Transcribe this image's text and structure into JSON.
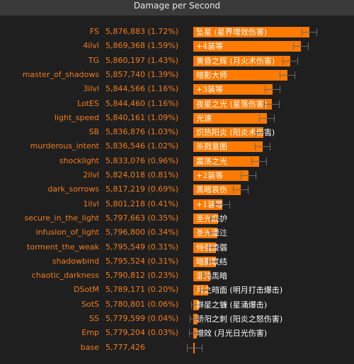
{
  "chart_data": {
    "type": "bar",
    "orientation": "horizontal",
    "title": "Damage per Second",
    "value_range": [
      5776000,
      5880500
    ],
    "colors": {
      "bar": "#ff7a00",
      "label": "#f27c1b",
      "background": "#1f1f1f",
      "title_bar": "#3a3a3a",
      "error_bar": "#6a6a6a"
    },
    "rows": [
      {
        "label": "FS",
        "value": 5876883,
        "value_text": "5,876,883 (1.72%)",
        "bar_text": "坠星 (星界增效伤害)"
      },
      {
        "label": "4ilvl",
        "value": 5869368,
        "value_text": "5,869,368 (1.59%)",
        "bar_text": "+4装等"
      },
      {
        "label": "TG",
        "value": 5860197,
        "value_text": "5,860,197 (1.43%)",
        "bar_text": "黄昏之辉 (月火术伤害)"
      },
      {
        "label": "master_of_shadows",
        "value": 5857740,
        "value_text": "5,857,740 (1.39%)",
        "bar_text": "暗影大师"
      },
      {
        "label": "3ilvl",
        "value": 5844566,
        "value_text": "5,844,566 (1.16%)",
        "bar_text": "+3装等"
      },
      {
        "label": "LotES",
        "value": 5844460,
        "value_text": "5,844,460 (1.16%)",
        "bar_text": "夜星之光 (星落伤害)"
      },
      {
        "label": "light_speed",
        "value": 5840161,
        "value_text": "5,840,161 (1.09%)",
        "bar_text": "光速"
      },
      {
        "label": "SB",
        "value": 5836876,
        "value_text": "5,836,876 (1.03%)",
        "bar_text": "炽热阳炎 (阳炎术伤害)"
      },
      {
        "label": "murderous_intent",
        "value": 5836546,
        "value_text": "5,836,546 (1.02%)",
        "bar_text": "杀戮意图"
      },
      {
        "label": "shocklight",
        "value": 5833076,
        "value_text": "5,833,076 (0.96%)",
        "bar_text": "震荡之光"
      },
      {
        "label": "2ilvl",
        "value": 5824018,
        "value_text": "5,824,018 (0.81%)",
        "bar_text": "+2装等"
      },
      {
        "label": "dark_sorrows",
        "value": 5817219,
        "value_text": "5,817,219 (0.69%)",
        "bar_text": "黑暗哀伤"
      },
      {
        "label": "1ilvl",
        "value": 5801218,
        "value_text": "5,801,218 (0.41%)",
        "bar_text": "+1装等"
      },
      {
        "label": "secure_in_the_light",
        "value": 5797663,
        "value_text": "5,797,663 (0.35%)",
        "bar_text": "圣光庇护"
      },
      {
        "label": "infusion_of_light",
        "value": 5796800,
        "value_text": "5,796,800 (0.34%)",
        "bar_text": "圣光灌注"
      },
      {
        "label": "torment_the_weak",
        "value": 5795549,
        "value_text": "5,795,549 (0.31%)",
        "bar_text": "恃强凌弱"
      },
      {
        "label": "shadowbind",
        "value": 5795524,
        "value_text": "5,795,524 (0.31%)",
        "bar_text": "暗影联结"
      },
      {
        "label": "chaotic_darkness",
        "value": 5790812,
        "value_text": "5,790,812 (0.23%)",
        "bar_text": "混沌黑暗"
      },
      {
        "label": "DSotM",
        "value": 5789171,
        "value_text": "5,789,171 (0.20%)",
        "bar_text": "月之暗面 (明月打击爆击)"
      },
      {
        "label": "SotS",
        "value": 5780801,
        "value_text": "5,780,801 (0.06%)",
        "bar_text": "群星之镰 (星涌爆击)"
      },
      {
        "label": "SS",
        "value": 5779599,
        "value_text": "5,779,599 (0.04%)",
        "bar_text": "骄阳之刺 (阳炎之怒伤害)"
      },
      {
        "label": "Emp",
        "value": 5779204,
        "value_text": "5,779,204 (0.03%)",
        "bar_text": "增效 (月光日光伤害)"
      },
      {
        "label": "base",
        "value": 5777426,
        "value_text": "5,777,426",
        "bar_text": ""
      }
    ]
  }
}
